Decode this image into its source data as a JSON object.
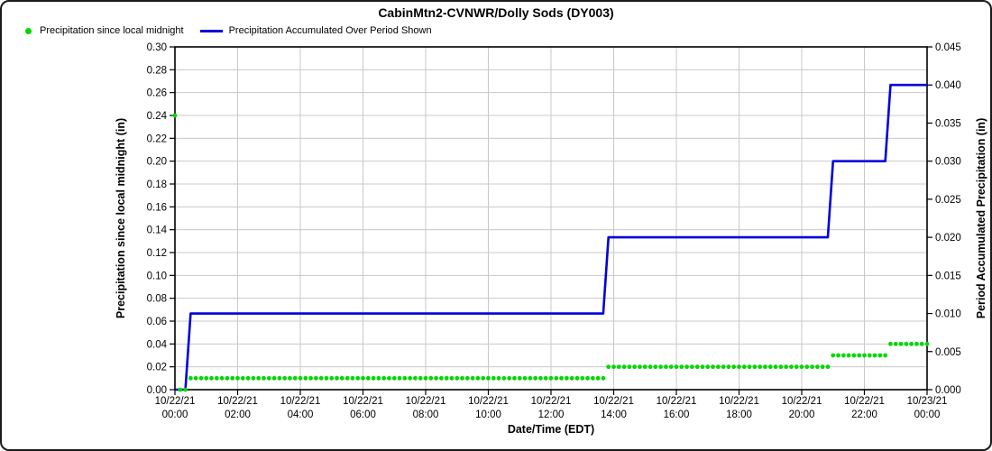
{
  "chart_data": {
    "type": "line",
    "title": "CabinMtn2-CVNWR/Dolly Sods (DY003)",
    "xlabel": "Date/Time (EDT)",
    "background": "#FFFFFF",
    "grid": {
      "color": "#C8C8C8",
      "horizontal": "left-axis 0.02 steps",
      "vertical": "2-hour steps"
    },
    "x_axis": {
      "range_minutes": [
        0,
        1440
      ],
      "tick_interval_minutes": 120,
      "ticks": [
        {
          "date": "10/22/21",
          "time": "00:00"
        },
        {
          "date": "10/22/21",
          "time": "02:00"
        },
        {
          "date": "10/22/21",
          "time": "04:00"
        },
        {
          "date": "10/22/21",
          "time": "06:00"
        },
        {
          "date": "10/22/21",
          "time": "08:00"
        },
        {
          "date": "10/22/21",
          "time": "10:00"
        },
        {
          "date": "10/22/21",
          "time": "12:00"
        },
        {
          "date": "10/22/21",
          "time": "14:00"
        },
        {
          "date": "10/22/21",
          "time": "16:00"
        },
        {
          "date": "10/22/21",
          "time": "18:00"
        },
        {
          "date": "10/22/21",
          "time": "20:00"
        },
        {
          "date": "10/22/21",
          "time": "22:00"
        },
        {
          "date": "10/23/21",
          "time": "00:00"
        }
      ]
    },
    "y_left": {
      "label": "Precipitation since local midnight (in)",
      "min": 0,
      "max": 0.3,
      "tick_step": 0.02,
      "ticks": [
        "0.00",
        "0.02",
        "0.04",
        "0.06",
        "0.08",
        "0.10",
        "0.12",
        "0.14",
        "0.16",
        "0.18",
        "0.20",
        "0.22",
        "0.24",
        "0.26",
        "0.28",
        "0.30"
      ]
    },
    "y_right": {
      "label": "Period Accumulated Precipitation (in)",
      "min": 0,
      "max": 0.045,
      "tick_step": 0.005,
      "ticks": [
        "0.000",
        "0.005",
        "0.010",
        "0.015",
        "0.020",
        "0.025",
        "0.030",
        "0.035",
        "0.040",
        "0.045"
      ]
    },
    "series": [
      {
        "name": "Precipitation since local midnight",
        "type": "scatter",
        "axis": "left",
        "color": "#00D800",
        "marker": "circle",
        "sample_interval_minutes": 10,
        "special_points": [
          {
            "minute": 0,
            "time": "00:00",
            "value": 0.24
          }
        ],
        "segments": [
          {
            "start_minute": 10,
            "end_minute": 20,
            "start_time": "00:10",
            "end_time": "00:20",
            "value": 0.0
          },
          {
            "start_minute": 30,
            "end_minute": 820,
            "start_time": "00:30",
            "end_time": "13:40",
            "value": 0.01
          },
          {
            "start_minute": 830,
            "end_minute": 1250,
            "start_time": "13:50",
            "end_time": "20:50",
            "value": 0.02
          },
          {
            "start_minute": 1260,
            "end_minute": 1360,
            "start_time": "21:00",
            "end_time": "22:40",
            "value": 0.03
          },
          {
            "start_minute": 1370,
            "end_minute": 1440,
            "start_time": "22:50",
            "end_time": "24:00",
            "value": 0.04
          }
        ]
      },
      {
        "name": "Precipitation Accumulated Over Period Shown",
        "type": "line",
        "axis": "right",
        "color": "#0000DD",
        "line_width": 2.6,
        "vertices": [
          {
            "minute": 0,
            "time": "00:00",
            "value": 0.0
          },
          {
            "minute": 20,
            "time": "00:20",
            "value": 0.0
          },
          {
            "minute": 30,
            "time": "00:30",
            "value": 0.01
          },
          {
            "minute": 820,
            "time": "13:40",
            "value": 0.01
          },
          {
            "minute": 830,
            "time": "13:50",
            "value": 0.02
          },
          {
            "minute": 1250,
            "time": "20:50",
            "value": 0.02
          },
          {
            "minute": 1260,
            "time": "21:00",
            "value": 0.03
          },
          {
            "minute": 1360,
            "time": "22:40",
            "value": 0.03
          },
          {
            "minute": 1370,
            "time": "22:50",
            "value": 0.04
          },
          {
            "minute": 1440,
            "time": "24:00",
            "value": 0.04
          }
        ]
      }
    ]
  }
}
